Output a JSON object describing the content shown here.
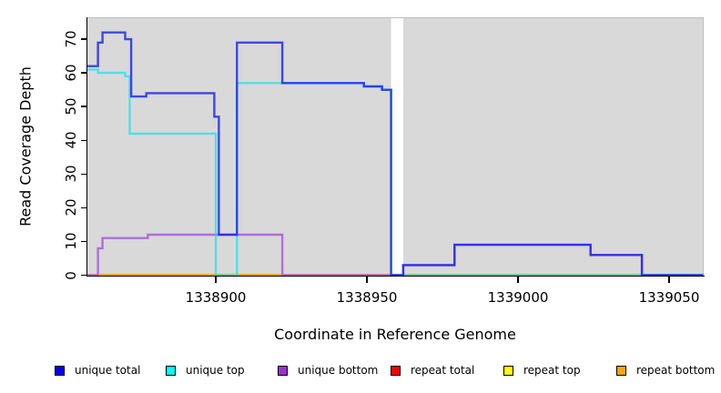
{
  "figure": {
    "xlabel": "Coordinate in Reference Genome",
    "ylabel": "Read Coverage Depth"
  },
  "chart_data": {
    "type": "line",
    "line_style": "step-after",
    "title": "",
    "xlabel": "Coordinate in Reference Genome",
    "ylabel": "Read Coverage Depth",
    "xlim": [
      1338857.5,
      1339061.3
    ],
    "ylim": [
      0,
      76.5
    ],
    "x_ticks": [
      1338900,
      1338950,
      1339000,
      1339050
    ],
    "y_ticks": [
      0,
      10,
      20,
      30,
      40,
      50,
      60,
      70
    ],
    "grid": false,
    "plot_background": "#D9D9D9",
    "masked_region": {
      "from": 1338958,
      "to": 1338962,
      "color": "#FFFFFF"
    },
    "legend": {
      "position": "bottom",
      "entries": [
        {
          "label": "unique total",
          "color": "#0000F5"
        },
        {
          "label": "unique top",
          "color": "#00FFFF"
        },
        {
          "label": "unique bottom",
          "color": "#9B30D6"
        },
        {
          "label": "repeat total",
          "color": "#FF0000"
        },
        {
          "label": "repeat top",
          "color": "#FFFF00"
        },
        {
          "label": "repeat bottom",
          "color": "#FFA500"
        }
      ]
    },
    "series": [
      {
        "name": "repeat-top",
        "label": "repeat top",
        "stroke": "#FFFF00",
        "opacity": 1,
        "points": [
          [
            1338857,
            0
          ],
          [
            1339061,
            0
          ]
        ]
      },
      {
        "name": "repeat-total",
        "label": "repeat total",
        "stroke": "#E04A6E",
        "opacity": 0.9,
        "points": [
          [
            1338857,
            0
          ],
          [
            1338958,
            0
          ]
        ]
      },
      {
        "name": "repeat-bottom",
        "label": "repeat bottom",
        "stroke": "#FFA520",
        "opacity": 1,
        "points": [
          [
            1338857,
            0
          ],
          [
            1338922,
            0
          ]
        ]
      },
      {
        "name": "unique-bottom",
        "label": "unique bottom",
        "stroke": "#A85CD8",
        "opacity": 0.85,
        "points": [
          [
            1338857,
            0
          ],
          [
            1338861,
            8
          ],
          [
            1338862.5,
            11
          ],
          [
            1338877.5,
            12
          ],
          [
            1338922,
            0
          ],
          [
            1338962,
            3
          ],
          [
            1338979,
            9
          ],
          [
            1339024,
            6
          ],
          [
            1339041,
            0
          ],
          [
            1339061,
            0
          ]
        ]
      },
      {
        "name": "unique-top",
        "label": "unique top",
        "stroke": "#00E0EE",
        "opacity": 0.6,
        "points": [
          [
            1338857,
            61
          ],
          [
            1338861,
            60
          ],
          [
            1338870,
            59
          ],
          [
            1338871.5,
            42
          ],
          [
            1338900,
            0
          ],
          [
            1338907,
            57
          ],
          [
            1338949,
            56
          ],
          [
            1338955,
            55
          ],
          [
            1338958,
            0
          ],
          [
            1339061,
            0
          ]
        ]
      },
      {
        "name": "unique-total",
        "label": "unique total",
        "stroke": "#1620E6",
        "opacity": 0.8,
        "points": [
          [
            1338857,
            62
          ],
          [
            1338861,
            69
          ],
          [
            1338862.5,
            72
          ],
          [
            1338870,
            70
          ],
          [
            1338872,
            53
          ],
          [
            1338877,
            54
          ],
          [
            1338899.5,
            47
          ],
          [
            1338901,
            12
          ],
          [
            1338907,
            69
          ],
          [
            1338922,
            57
          ],
          [
            1338949,
            56
          ],
          [
            1338955,
            55
          ],
          [
            1338958,
            0
          ],
          [
            1338962,
            3
          ],
          [
            1338979,
            9
          ],
          [
            1339024,
            6
          ],
          [
            1339041,
            0
          ],
          [
            1339061,
            0
          ]
        ]
      }
    ]
  }
}
